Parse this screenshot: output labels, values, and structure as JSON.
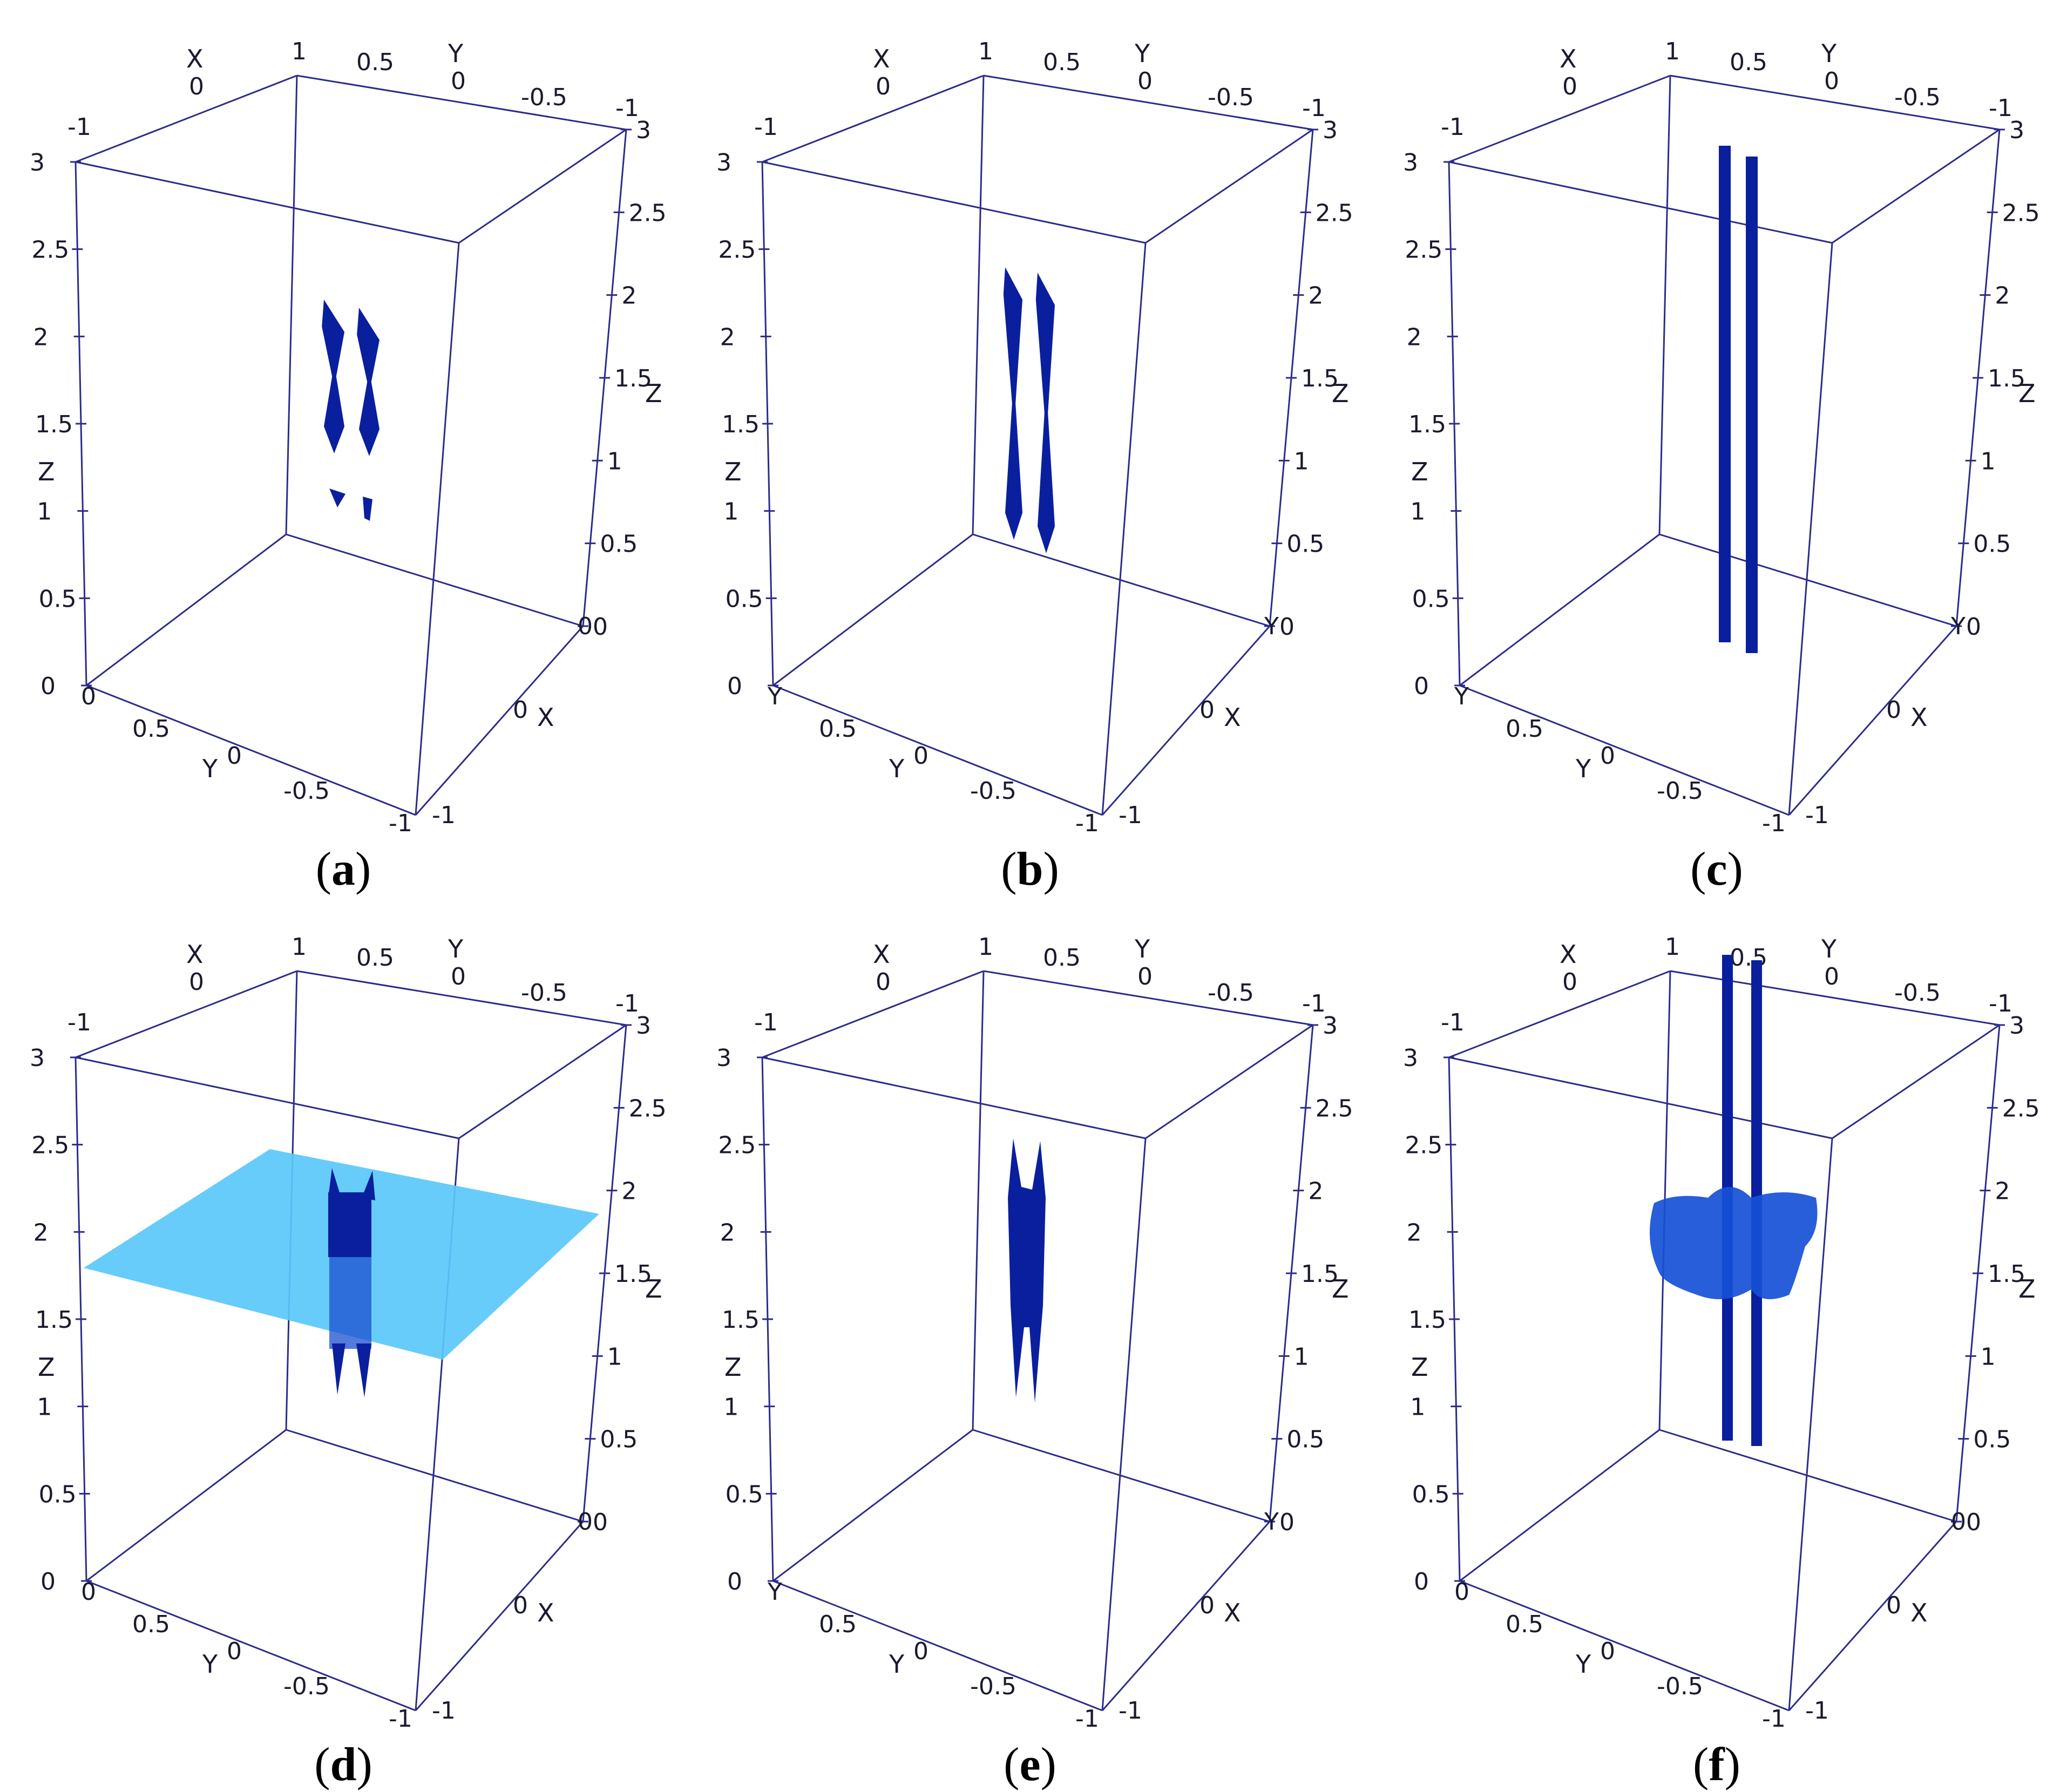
{
  "colors": {
    "edge": "#2b2b8c",
    "structure": "#0a1f9e",
    "structure_light": "#1650d6",
    "plane": "#5ac8fa"
  },
  "panels": [
    {
      "label_open": "(",
      "label_letter": "a",
      "label_close": ")",
      "ticks_top_left": {
        "x_axis": "X",
        "x0": "0",
        "x1": "1",
        "y05": "0.5",
        "y_axis": "Y",
        "y0": "0",
        "ym05": "-0.5",
        "ym1": "-1",
        "xm1": "-1"
      },
      "z_left": [
        "3",
        "2.5",
        "2",
        "1.5",
        "1",
        "0.5",
        "0"
      ],
      "z_left_axis": "Z",
      "z_right": [
        "3",
        "2.5",
        "2",
        "1.5",
        "1",
        "0.5",
        "0"
      ],
      "z_right_axis": "Z",
      "bottom": {
        "y05": "0.5",
        "y_axis": "Y",
        "y0": "0",
        "ym05": "-0.5",
        "ym1": "-1",
        "xm1": "-1",
        "x0": "0",
        "x_axis": "X",
        "y1": "0"
      }
    },
    {
      "label_open": "(",
      "label_letter": "b",
      "label_close": ")",
      "ticks_top_left": {
        "x_axis": "X",
        "x0": "0",
        "x1": "1",
        "y05": "0.5",
        "y_axis": "Y",
        "y0": "0",
        "ym05": "-0.5",
        "ym1": "-1",
        "xm1": "-1"
      },
      "z_left": [
        "3",
        "2.5",
        "2",
        "1.5",
        "1",
        "0.5",
        "0"
      ],
      "z_left_axis": "Z",
      "z_right": [
        "3",
        "2.5",
        "2",
        "1.5",
        "1",
        "0.5",
        "0"
      ],
      "z_right_axis": "Z",
      "bottom": {
        "y05": "0.5",
        "y_axis": "Y",
        "y0": "0",
        "ym05": "-0.5",
        "ym1": "-1",
        "xm1": "-1",
        "x0": "0",
        "x_axis": "X",
        "y1": "Y"
      }
    },
    {
      "label_open": "(",
      "label_letter": "c",
      "label_close": ")",
      "ticks_top_left": {
        "x_axis": "X",
        "x0": "0",
        "x1": "1",
        "y05": "0.5",
        "y_axis": "Y",
        "y0": "0",
        "ym05": "-0.5",
        "ym1": "-1",
        "xm1": "-1"
      },
      "z_left": [
        "3",
        "2.5",
        "2",
        "1.5",
        "1",
        "0.5",
        "0"
      ],
      "z_left_axis": "Z",
      "z_right": [
        "3",
        "2.5",
        "2",
        "1.5",
        "1",
        "0.5",
        "0"
      ],
      "z_right_axis": "Z",
      "bottom": {
        "y05": "0.5",
        "y_axis": "Y",
        "y0": "0",
        "ym05": "-0.5",
        "ym1": "-1",
        "xm1": "-1",
        "x0": "0",
        "x_axis": "X",
        "y1": "Y"
      }
    },
    {
      "label_open": "(",
      "label_letter": "d",
      "label_close": ")",
      "ticks_top_left": {
        "x_axis": "X",
        "x0": "0",
        "x1": "1",
        "y05": "0.5",
        "y_axis": "Y",
        "y0": "0",
        "ym05": "-0.5",
        "ym1": "-1",
        "xm1": "-1"
      },
      "z_left": [
        "3",
        "2.5",
        "2",
        "1.5",
        "1",
        "0.5",
        "0"
      ],
      "z_left_axis": "Z",
      "z_right": [
        "3",
        "2.5",
        "2",
        "1.5",
        "1",
        "0.5",
        "0"
      ],
      "z_right_axis": "Z",
      "bottom": {
        "y05": "0.5",
        "y_axis": "Y",
        "y0": "0",
        "ym05": "-0.5",
        "ym1": "-1",
        "xm1": "-1",
        "x0": "0",
        "x_axis": "X",
        "y1": "0"
      }
    },
    {
      "label_open": "(",
      "label_letter": "e",
      "label_close": ")",
      "ticks_top_left": {
        "x_axis": "X",
        "x0": "0",
        "x1": "1",
        "y05": "0.5",
        "y_axis": "Y",
        "y0": "0",
        "ym05": "-0.5",
        "ym1": "-1",
        "xm1": "-1"
      },
      "z_left": [
        "3",
        "2.5",
        "2",
        "1.5",
        "1",
        "0.5",
        "0"
      ],
      "z_left_axis": "Z",
      "z_right": [
        "3",
        "2.5",
        "2",
        "1.5",
        "1",
        "0.5",
        "0"
      ],
      "z_right_axis": "Z",
      "bottom": {
        "y05": "0.5",
        "y_axis": "Y",
        "y0": "0",
        "ym05": "-0.5",
        "ym1": "-1",
        "xm1": "-1",
        "x0": "0",
        "x_axis": "X",
        "y1": "Y"
      }
    },
    {
      "label_open": "(",
      "label_letter": "f",
      "label_close": ")",
      "ticks_top_left": {
        "x_axis": "X",
        "x0": "0",
        "x1": "1",
        "y05": "0.5",
        "y_axis": "Y",
        "y0": "0",
        "ym05": "-0.5",
        "ym1": "-1",
        "xm1": "-1"
      },
      "z_left": [
        "3",
        "2.5",
        "2",
        "1.5",
        "1",
        "0.5",
        "0"
      ],
      "z_left_axis": "Z",
      "z_right": [
        "3",
        "2.5",
        "2",
        "1.5",
        "1",
        "0.5",
        "0"
      ],
      "z_right_axis": "Z",
      "bottom": {
        "y05": "0.5",
        "y_axis": "Y",
        "y0": "0",
        "ym05": "-0.5",
        "ym1": "-1",
        "xm1": "-1",
        "x0": "0",
        "x_axis": "X",
        "y1": "0"
      }
    }
  ]
}
